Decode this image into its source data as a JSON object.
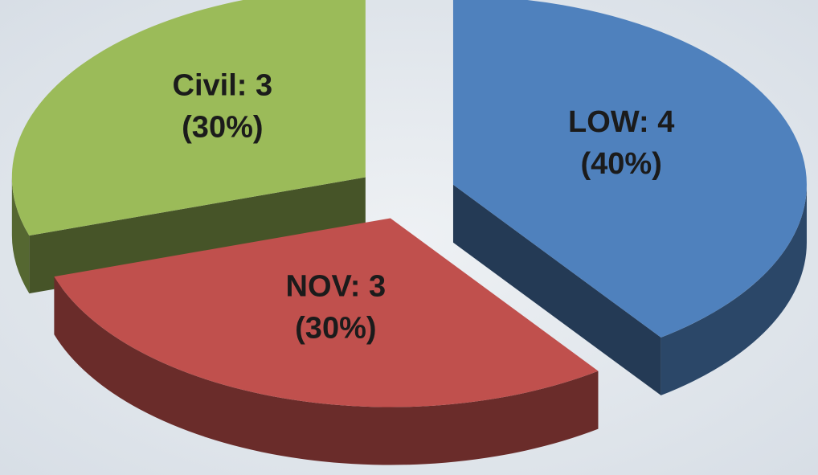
{
  "chart_data": {
    "type": "pie3d",
    "values": [
      4,
      3,
      3
    ],
    "value_labels": [
      [
        "LOW: 4",
        "(40%)"
      ],
      [
        "NOV: 3",
        "(30%)"
      ],
      [
        "Civil: 3",
        "(30%)"
      ]
    ],
    "colors": [
      "#4f81bd",
      "#c0504d",
      "#9bbb59"
    ],
    "exploded": true
  }
}
